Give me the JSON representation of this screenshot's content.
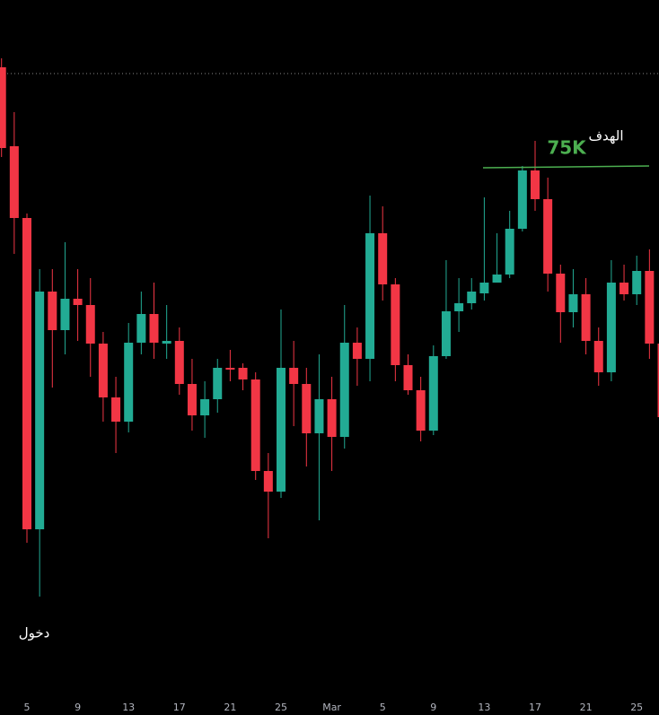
{
  "chart_data": {
    "type": "candlestick",
    "categories": [
      null,
      null,
      "5",
      null,
      null,
      null,
      "9",
      null,
      null,
      null,
      "13",
      null,
      null,
      null,
      "17",
      null,
      null,
      null,
      "21",
      null,
      null,
      null,
      "25",
      null,
      null,
      null,
      "Mar",
      null,
      null,
      null,
      "5",
      null,
      null,
      null,
      "9",
      null,
      null,
      null,
      "13",
      null,
      null,
      null,
      "17",
      null,
      null,
      null,
      "21",
      null,
      null,
      null,
      "25",
      null,
      null
    ],
    "open": [
      79480,
      75960,
      72760,
      58880,
      69480,
      67760,
      69160,
      68880,
      67160,
      64760,
      63680,
      67200,
      68480,
      67160,
      67280,
      65360,
      63960,
      64680,
      66080,
      66080,
      65560,
      61480,
      60560,
      66080,
      65360,
      63160,
      64680,
      63000,
      67200,
      66480,
      72080,
      69800,
      66200,
      65080,
      63280,
      66600,
      68600,
      68960,
      69400,
      69880,
      70240,
      72280,
      74880,
      73600,
      70280,
      68560,
      69360,
      67280,
      65880,
      69880,
      69360,
      70400,
      67160
    ],
    "high": [
      79880,
      77480,
      72960,
      70480,
      70480,
      71680,
      70480,
      70080,
      67680,
      65680,
      68080,
      69480,
      69880,
      68880,
      67880,
      66480,
      65480,
      66480,
      66880,
      66280,
      65880,
      62280,
      68680,
      67280,
      66080,
      66680,
      65680,
      68880,
      67880,
      73760,
      73280,
      70080,
      66680,
      65680,
      67080,
      70880,
      70080,
      70080,
      73680,
      72080,
      73080,
      75080,
      76200,
      74560,
      70680,
      70480,
      70080,
      67880,
      70880,
      70680,
      71080,
      71360,
      67880
    ],
    "low": [
      75480,
      71160,
      58280,
      55880,
      65200,
      66680,
      67280,
      65680,
      63680,
      62280,
      63200,
      66680,
      66480,
      66480,
      64880,
      63280,
      62960,
      64080,
      65480,
      65080,
      61080,
      58480,
      60280,
      63480,
      61680,
      59280,
      61480,
      62480,
      65280,
      65480,
      69080,
      65480,
      64880,
      62800,
      63080,
      66480,
      67680,
      68680,
      69080,
      69880,
      70080,
      72160,
      73080,
      69480,
      67200,
      67880,
      66680,
      65280,
      65480,
      69080,
      68880,
      66480,
      63200
    ],
    "close": [
      75880,
      72760,
      58880,
      69480,
      67760,
      69160,
      68880,
      67160,
      64760,
      63680,
      67200,
      68480,
      67200,
      67280,
      65360,
      63960,
      64680,
      66080,
      66000,
      65560,
      61480,
      60560,
      66080,
      65360,
      63160,
      64680,
      63000,
      67200,
      66480,
      72080,
      69800,
      66200,
      65080,
      63280,
      66600,
      68600,
      68960,
      69480,
      69880,
      70240,
      72280,
      74880,
      73600,
      70280,
      68560,
      69360,
      67280,
      65880,
      69880,
      69360,
      70400,
      67160,
      63880
    ],
    "up_color": "#22ab94",
    "down_color": "#f23645",
    "ylim": [
      51280,
      82480
    ],
    "target_line": {
      "value": 75000,
      "label": "75K",
      "color": "#4caf50"
    },
    "target_note": "الهدف",
    "entry_note": "دخول",
    "last_price_line": 79200
  }
}
